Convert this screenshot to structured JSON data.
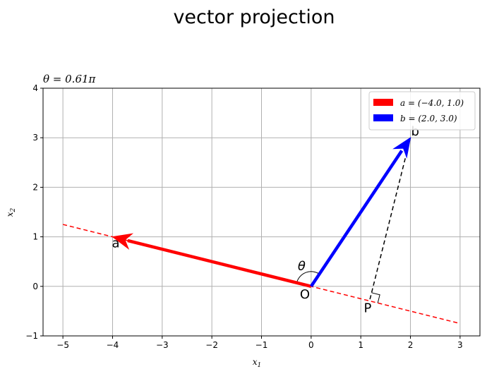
{
  "chart_data": {
    "type": "vector-plot",
    "title": "vector projection",
    "subtitle": "θ = 0.61π",
    "xlabel": "x",
    "xlabel_sub": "1",
    "ylabel": "x",
    "ylabel_sub": "2",
    "xlim": [
      -5.4,
      3.4
    ],
    "ylim": [
      -1,
      4
    ],
    "xticks": [
      -5,
      -4,
      -3,
      -2,
      -1,
      0,
      1,
      2,
      3
    ],
    "yticks": [
      -1,
      0,
      1,
      2,
      3,
      4
    ],
    "grid": true,
    "vectors": [
      {
        "name": "a",
        "x": -4.0,
        "y": 1.0,
        "color": "#ff0000",
        "legend": "a = (−4.0, 1.0)"
      },
      {
        "name": "b",
        "x": 2.0,
        "y": 3.0,
        "color": "#0000ff",
        "legend": "b = (2.0, 3.0)"
      }
    ],
    "line_through_a": {
      "x": [
        -5,
        3
      ],
      "y": [
        1.25,
        -0.75
      ],
      "color": "#ff0000",
      "style": "dashed"
    },
    "projection": {
      "from": [
        2.0,
        3.0
      ],
      "to": [
        1.176,
        -0.294
      ],
      "color": "#000000",
      "style": "dashed"
    },
    "point_labels": {
      "origin": "O",
      "projection": "P",
      "angle": "θ",
      "a": "a",
      "b": "b"
    },
    "legend_position": "upper right"
  }
}
